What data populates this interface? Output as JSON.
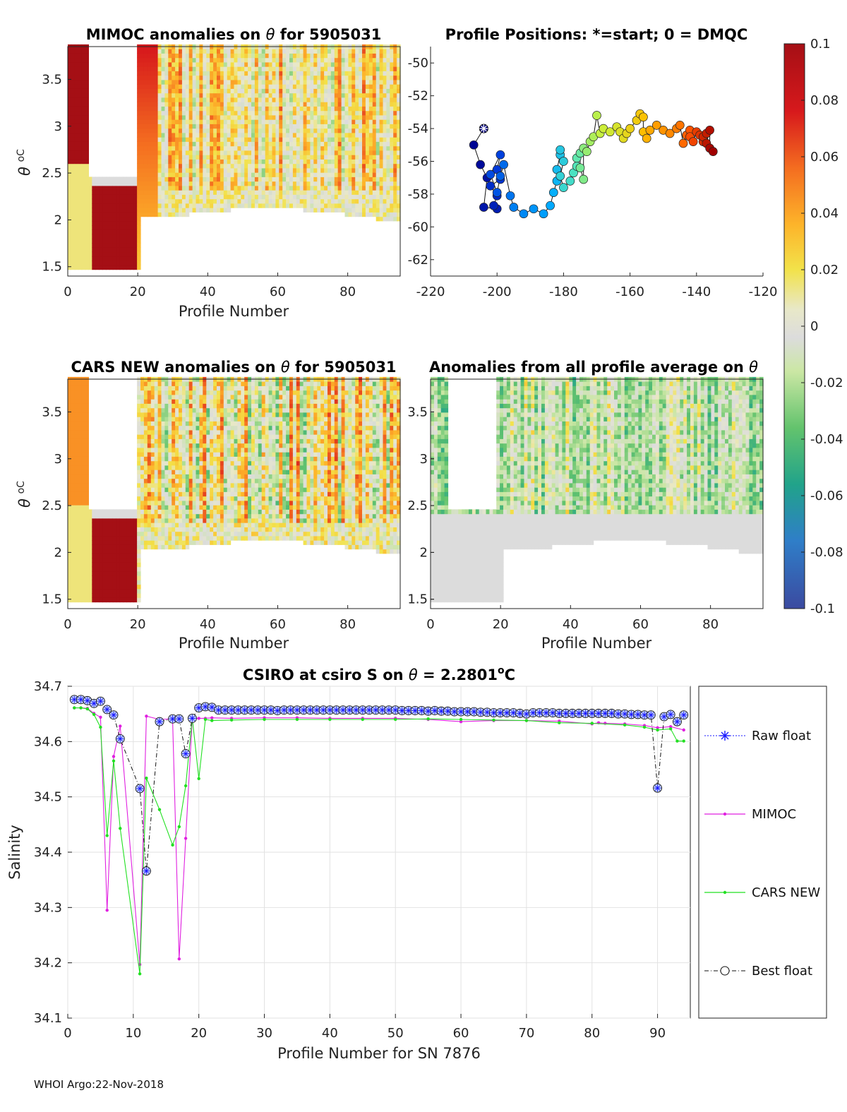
{
  "footer": "WHOI Argo:22-Nov-2018",
  "chart_data": [
    {
      "id": "mimoc",
      "type": "heatmap",
      "title_prefix": "MIMOC anomalies on",
      "title_symbol": "θ",
      "title_suffix": " for 5905031",
      "xlabel": "Profile Number",
      "ylabel_symbol": "θ",
      "ylabel_unit": "oC",
      "xlim": [
        0,
        95
      ],
      "ylim": [
        1.4,
        3.85
      ],
      "xticks": [
        "0",
        "20",
        "40",
        "60",
        "80"
      ],
      "yticks": [
        "1.5",
        "2",
        "2.5",
        "3",
        "3.5"
      ]
    },
    {
      "id": "positions",
      "type": "scatter",
      "title": "Profile Positions: *=start; 0 = DMQC",
      "xlim": [
        -220,
        -120
      ],
      "ylim": [
        -63,
        -49
      ],
      "xticks": [
        "-220",
        "-200",
        "-180",
        "-160",
        "-140",
        "-120"
      ],
      "yticks": [
        "-50",
        "-52",
        "-54",
        "-56",
        "-58",
        "-60",
        "-62"
      ],
      "lon": [
        -204,
        -207,
        -205,
        -203,
        -204,
        -200,
        -201,
        -200,
        -202,
        -199,
        -200,
        -199,
        -202,
        -200,
        -199,
        -198,
        -196,
        -195,
        -192,
        -189,
        -186,
        -184,
        -183,
        -182,
        -182,
        -181,
        -181,
        -180,
        -181,
        -180,
        -178,
        -177,
        -176,
        -176,
        -175,
        -175,
        -174,
        -174,
        -173,
        -172,
        -171,
        -170,
        -169,
        -168,
        -166,
        -164,
        -163,
        -162,
        -161,
        -160,
        -158,
        -157,
        -156,
        -156,
        -155,
        -154,
        -152,
        -150,
        -148,
        -146,
        -145,
        -144,
        -143,
        -142,
        -142,
        -141,
        -140,
        -139,
        -138,
        -138,
        -137,
        -137,
        -136,
        -136,
        -135
      ],
      "lat": [
        -54,
        -55,
        -56.2,
        -57,
        -58.8,
        -58.9,
        -58.7,
        -58.1,
        -57.5,
        -57.1,
        -56.5,
        -55.6,
        -56.8,
        -57.9,
        -56.9,
        -56.2,
        -58.1,
        -58.8,
        -59.2,
        -58.9,
        -59.2,
        -58.7,
        -57.9,
        -57.2,
        -56.5,
        -55.6,
        -55.3,
        -56,
        -56.9,
        -57.6,
        -57.2,
        -56.7,
        -56.3,
        -55.8,
        -55.5,
        -56.4,
        -57.1,
        -55.2,
        -55.4,
        -54.8,
        -54.5,
        -53.2,
        -54.3,
        -54,
        -54.2,
        -53.9,
        -54.2,
        -54.6,
        -54.3,
        -54,
        -53.5,
        -53.1,
        -53.3,
        -54.2,
        -54.6,
        -54.1,
        -53.8,
        -54.1,
        -54.3,
        -54,
        -53.8,
        -54.9,
        -54.4,
        -54.1,
        -54.5,
        -54.8,
        -54.2,
        -54.4,
        -54.8,
        -54.5,
        -54.3,
        -54.9,
        -54.1,
        -55.2,
        -55.4
      ]
    },
    {
      "id": "colorbar",
      "type": "heatmap",
      "ticks": [
        "0.1",
        "0.08",
        "0.06",
        "0.04",
        "0.02",
        "0",
        "-0.02",
        "-0.04",
        "-0.06",
        "-0.08",
        "-0.1"
      ],
      "range": [
        -0.1,
        0.1
      ]
    },
    {
      "id": "cars",
      "type": "heatmap",
      "title_prefix": "CARS NEW anomalies on",
      "title_symbol": "θ",
      "title_suffix": " for 5905031",
      "xlabel": "Profile Number",
      "ylabel_symbol": "θ",
      "ylabel_unit": "oC",
      "xlim": [
        0,
        95
      ],
      "ylim": [
        1.4,
        3.85
      ],
      "xticks": [
        "0",
        "20",
        "40",
        "60",
        "80"
      ],
      "yticks": [
        "1.5",
        "2",
        "2.5",
        "3",
        "3.5"
      ]
    },
    {
      "id": "avg",
      "type": "heatmap",
      "title_prefix": "Anomalies from all profile average on",
      "title_symbol": "θ",
      "xlabel": "Profile Number",
      "xlim": [
        0,
        95
      ],
      "ylim": [
        1.4,
        3.85
      ],
      "xticks": [
        "0",
        "20",
        "40",
        "60",
        "80"
      ],
      "yticks": [
        "1.5",
        "2",
        "2.5",
        "3",
        "3.5"
      ]
    },
    {
      "id": "salinity",
      "type": "line",
      "title_prefix": "CSIRO at csiro S on",
      "title_symbol": "θ",
      "title_value": " = 2.2801",
      "title_unit": "o",
      "title_unit2": "C",
      "xlabel": "Profile Number for SN 7876",
      "ylabel": "Salinity",
      "xlim": [
        0,
        95
      ],
      "ylim": [
        34.1,
        34.7
      ],
      "xticks": [
        "0",
        "10",
        "20",
        "30",
        "40",
        "50",
        "60",
        "70",
        "80",
        "90"
      ],
      "yticks": [
        "34.1",
        "34.2",
        "34.3",
        "34.4",
        "34.5",
        "34.6",
        "34.7"
      ],
      "legend": [
        "Raw float",
        "MIMOC",
        "CARS NEW",
        "Best float"
      ],
      "series": [
        {
          "name": "Best float",
          "x": [
            1,
            2,
            3,
            4,
            5,
            6,
            7,
            8,
            11,
            12,
            14,
            16,
            17,
            18,
            19,
            20,
            21,
            22,
            23,
            24,
            25,
            26,
            27,
            28,
            29,
            30,
            31,
            32,
            33,
            34,
            35,
            36,
            37,
            38,
            39,
            40,
            41,
            42,
            43,
            44,
            45,
            46,
            47,
            48,
            49,
            50,
            51,
            52,
            53,
            54,
            55,
            56,
            57,
            58,
            59,
            60,
            61,
            62,
            63,
            64,
            65,
            66,
            67,
            68,
            69,
            70,
            71,
            72,
            73,
            74,
            75,
            76,
            77,
            78,
            79,
            80,
            81,
            82,
            83,
            84,
            85,
            86,
            87,
            88,
            89,
            90,
            91,
            92,
            93,
            94
          ],
          "y": [
            34.676,
            34.676,
            34.674,
            34.669,
            34.673,
            34.658,
            34.648,
            34.605,
            34.515,
            34.366,
            34.636,
            34.641,
            34.641,
            34.578,
            34.642,
            34.661,
            34.663,
            34.662,
            34.657,
            34.657,
            34.657,
            34.657,
            34.657,
            34.657,
            34.657,
            34.657,
            34.657,
            34.656,
            34.657,
            34.657,
            34.657,
            34.657,
            34.657,
            34.657,
            34.657,
            34.657,
            34.657,
            34.657,
            34.657,
            34.657,
            34.657,
            34.657,
            34.657,
            34.657,
            34.657,
            34.657,
            34.656,
            34.656,
            34.656,
            34.656,
            34.655,
            34.656,
            34.655,
            34.655,
            34.654,
            34.654,
            34.654,
            34.654,
            34.653,
            34.653,
            34.652,
            34.652,
            34.652,
            34.652,
            34.651,
            34.65,
            34.652,
            34.652,
            34.652,
            34.652,
            34.651,
            34.651,
            34.651,
            34.651,
            34.651,
            34.651,
            34.651,
            34.651,
            34.651,
            34.65,
            34.65,
            34.649,
            34.649,
            34.648,
            34.648,
            34.516,
            34.645,
            34.649,
            34.636,
            34.648
          ]
        },
        {
          "name": "MIMOC",
          "x": [
            1,
            2,
            3,
            4,
            5,
            6,
            7,
            8,
            11,
            12,
            14,
            16,
            17,
            18,
            19,
            20,
            21,
            22,
            25,
            30,
            35,
            40,
            45,
            50,
            55,
            60,
            65,
            70,
            75,
            80,
            81,
            82,
            85,
            88,
            90,
            92,
            94
          ],
          "y": [
            34.661,
            34.661,
            34.66,
            34.651,
            34.644,
            34.295,
            34.573,
            34.628,
            34.197,
            34.646,
            34.64,
            34.641,
            34.207,
            34.425,
            34.641,
            34.642,
            34.642,
            34.643,
            34.642,
            34.643,
            34.643,
            34.642,
            34.642,
            34.642,
            34.64,
            34.636,
            34.638,
            34.638,
            34.637,
            34.632,
            34.634,
            34.633,
            34.632,
            34.629,
            34.625,
            34.627,
            34.621
          ]
        },
        {
          "name": "CARS NEW",
          "x": [
            1,
            2,
            3,
            4,
            5,
            6,
            7,
            8,
            11,
            12,
            14,
            16,
            17,
            18,
            19,
            20,
            21,
            22,
            25,
            30,
            35,
            40,
            45,
            50,
            55,
            60,
            65,
            70,
            75,
            80,
            85,
            88,
            90,
            92,
            93,
            94
          ],
          "y": [
            34.661,
            34.661,
            34.659,
            34.649,
            34.626,
            34.43,
            34.565,
            34.443,
            34.18,
            34.534,
            34.477,
            34.413,
            34.446,
            34.52,
            34.643,
            34.533,
            34.64,
            34.638,
            34.639,
            34.64,
            34.64,
            34.64,
            34.64,
            34.64,
            34.641,
            34.64,
            34.639,
            34.638,
            34.634,
            34.633,
            34.63,
            34.626,
            34.621,
            34.623,
            34.601,
            34.601
          ]
        }
      ]
    }
  ]
}
